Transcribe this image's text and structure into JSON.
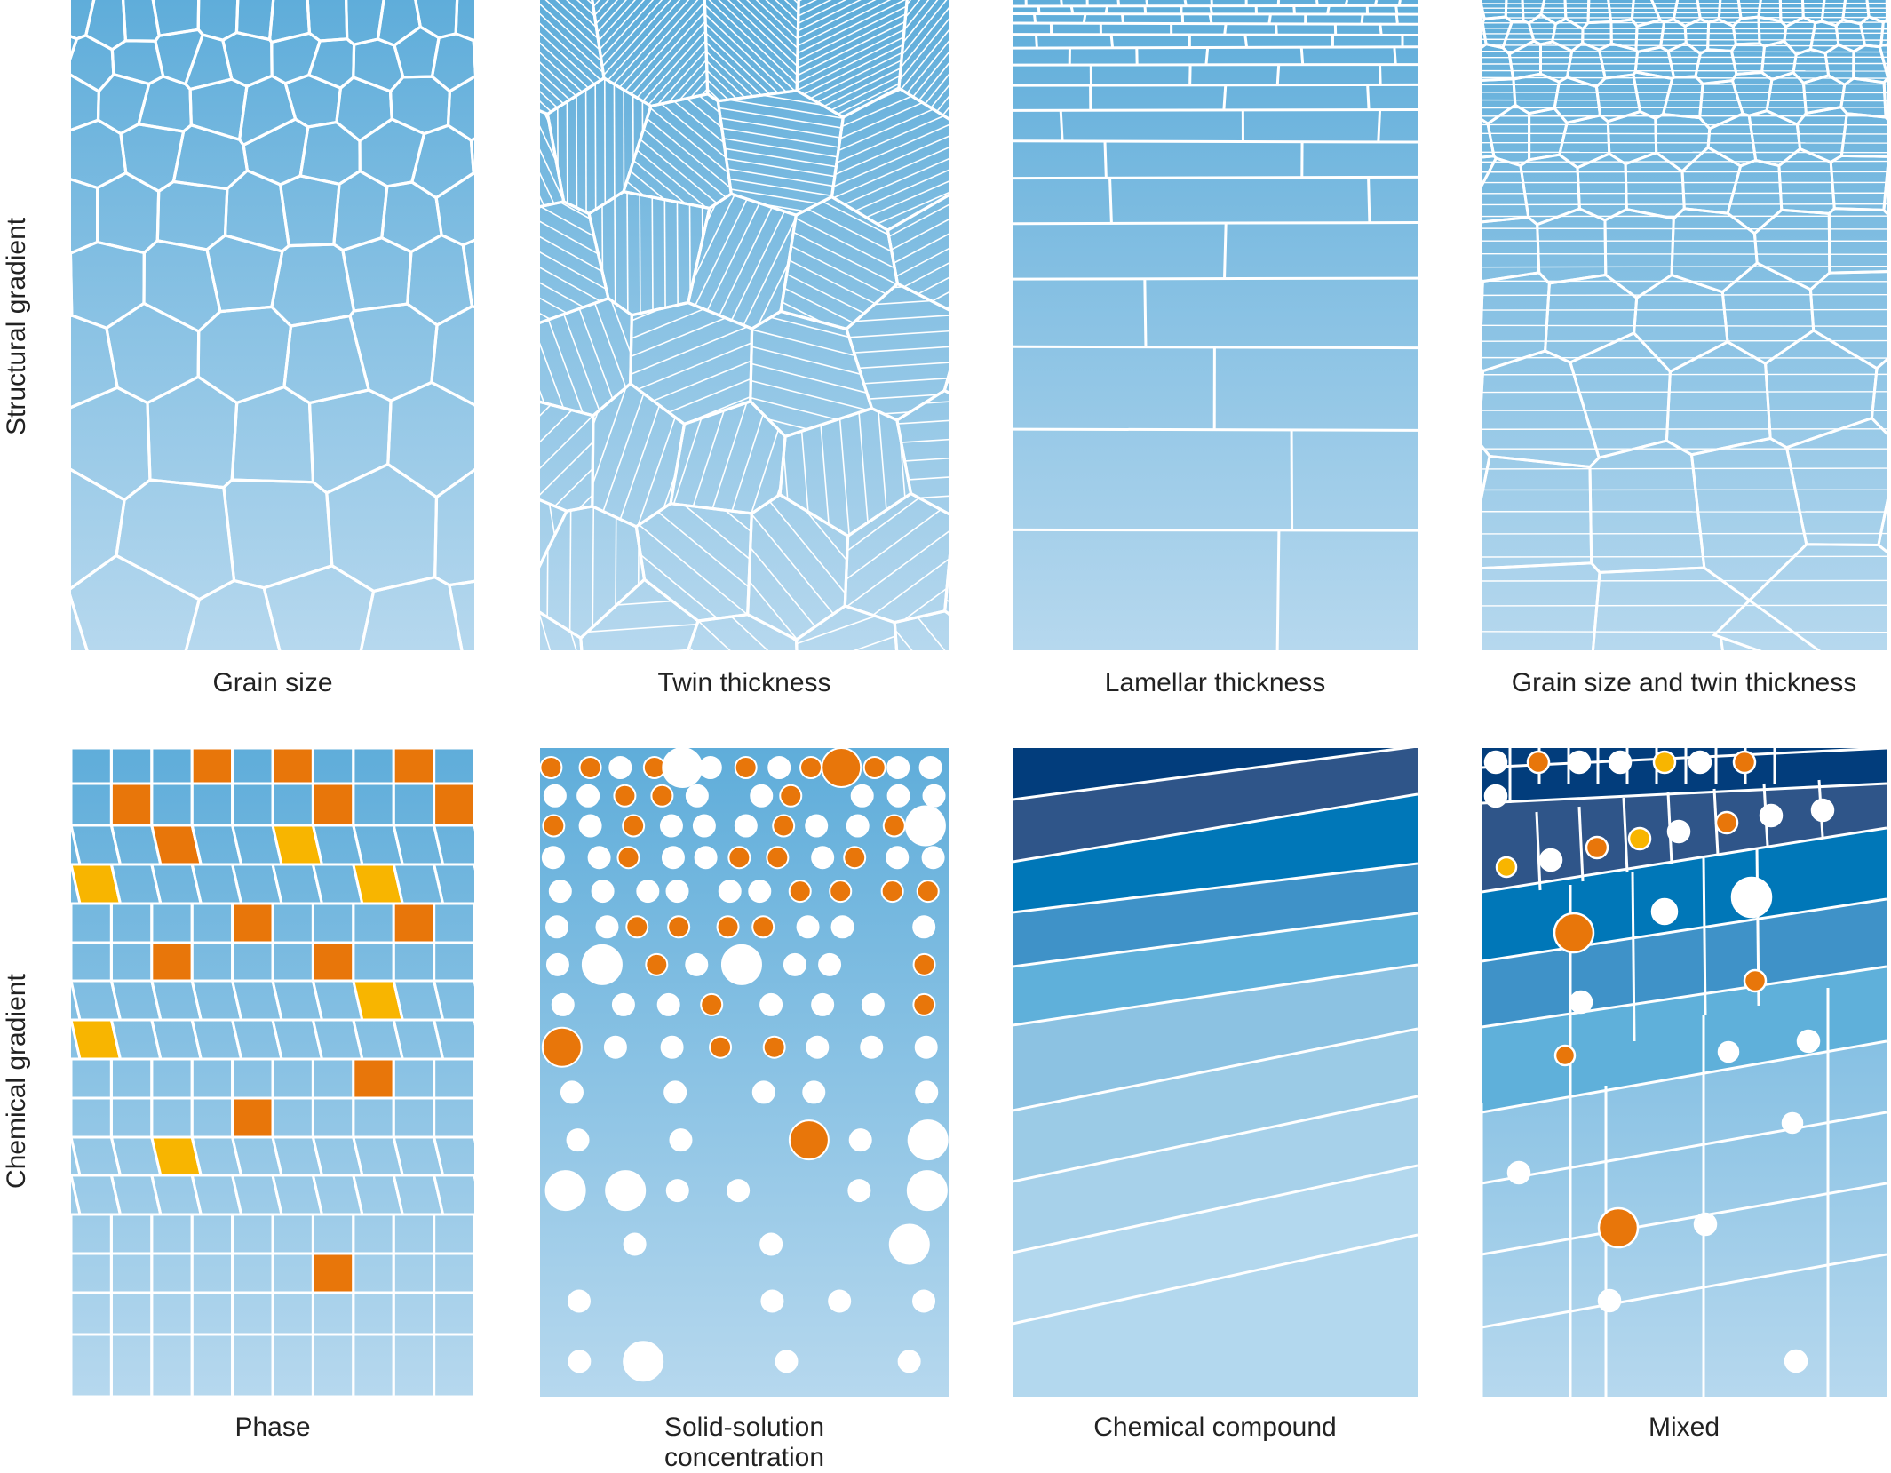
{
  "rows": [
    {
      "label": "Structural gradient"
    },
    {
      "label": "Chemical gradient"
    }
  ],
  "panels": [
    {
      "id": "grain-size",
      "caption": "Grain size",
      "kind": "grains"
    },
    {
      "id": "twin-thickness",
      "caption": "Twin thickness",
      "kind": "twins"
    },
    {
      "id": "lamellar-thickness",
      "caption": "Lamellar thickness",
      "kind": "lamellae"
    },
    {
      "id": "grain-and-twin",
      "caption": "Grain size and twin thickness",
      "kind": "grain-twin"
    },
    {
      "id": "phase",
      "caption": "Phase",
      "kind": "phase"
    },
    {
      "id": "solid-solution",
      "caption": "Solid-solution",
      "caption2": "concentration",
      "kind": "solid-solution"
    },
    {
      "id": "chemical-compound",
      "caption": "Chemical compound",
      "kind": "compound"
    },
    {
      "id": "mixed",
      "caption": "Mixed",
      "kind": "mixed"
    }
  ],
  "colors": {
    "gradient_top": "#5fadda",
    "gradient_bottom": "#b6d8ee",
    "boundary": "#ffffff",
    "precipitate_orange": "#e8760a",
    "precipitate_yellow": "#f8b500",
    "compound_bands": [
      "#023d7c",
      "#2f5589",
      "#0077b8",
      "#3f92c8",
      "#5fb0da",
      "#8cc2e2",
      "#9bcbe6",
      "#a7d1ea",
      "#b3d8ee"
    ]
  }
}
